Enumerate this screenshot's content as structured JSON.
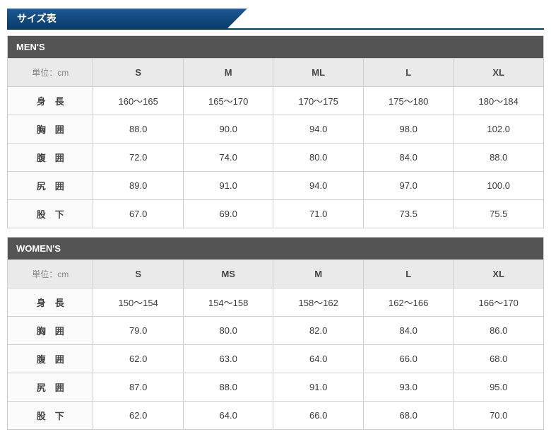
{
  "page_title": "サイズ表",
  "colors": {
    "header_gradient_top": "#1e5a94",
    "header_gradient_bottom": "#0a3a6a",
    "section_bg": "#545454",
    "th_bg": "#eaeaea",
    "row_label_bg": "#fafafa",
    "border": "#d0d0d0",
    "text": "#3a3a3a"
  },
  "tables": {
    "mens": {
      "title": "MEN'S",
      "unit_label": "単位：cm",
      "columns": [
        "S",
        "M",
        "ML",
        "L",
        "XL"
      ],
      "rows": [
        {
          "label": "身長",
          "values": [
            "160～165",
            "165～170",
            "170～175",
            "175～180",
            "180～184"
          ]
        },
        {
          "label": "胸囲",
          "values": [
            "88.0",
            "90.0",
            "94.0",
            "98.0",
            "102.0"
          ]
        },
        {
          "label": "腹囲",
          "values": [
            "72.0",
            "74.0",
            "80.0",
            "84.0",
            "88.0"
          ]
        },
        {
          "label": "尻囲",
          "values": [
            "89.0",
            "91.0",
            "94.0",
            "97.0",
            "100.0"
          ]
        },
        {
          "label": "股下",
          "values": [
            "67.0",
            "69.0",
            "71.0",
            "73.5",
            "75.5"
          ]
        }
      ]
    },
    "womens": {
      "title": "WOMEN'S",
      "unit_label": "単位：cm",
      "columns": [
        "S",
        "MS",
        "M",
        "L",
        "XL"
      ],
      "rows": [
        {
          "label": "身長",
          "values": [
            "150～154",
            "154～158",
            "158～162",
            "162～166",
            "166～170"
          ]
        },
        {
          "label": "胸囲",
          "values": [
            "79.0",
            "80.0",
            "82.0",
            "84.0",
            "86.0"
          ]
        },
        {
          "label": "腹囲",
          "values": [
            "62.0",
            "63.0",
            "64.0",
            "66.0",
            "68.0"
          ]
        },
        {
          "label": "尻囲",
          "values": [
            "87.0",
            "88.0",
            "91.0",
            "93.0",
            "95.0"
          ]
        },
        {
          "label": "股下",
          "values": [
            "62.0",
            "64.0",
            "66.0",
            "68.0",
            "70.0"
          ]
        }
      ]
    }
  }
}
